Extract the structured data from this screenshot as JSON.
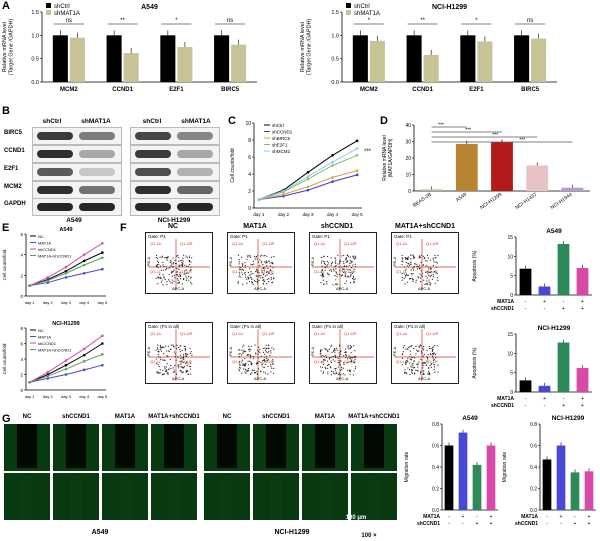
{
  "panel_letters": [
    "A",
    "B",
    "C",
    "D",
    "E",
    "F",
    "G"
  ],
  "western_blot": {
    "lanes_a549": [
      "shCtrl",
      "shMAT1A"
    ],
    "lanes_h1299": [
      "shCtrl",
      "shMAT1A"
    ],
    "rows": [
      "BIRC5",
      "CCND1",
      "E2F1",
      "MCM2",
      "GAPDH"
    ],
    "cell_lines": [
      "A549",
      "NCI-H1299"
    ]
  },
  "flow": {
    "columns": [
      "NC",
      "MAT1A",
      "shCCND1",
      "MAT1A+shCCND1"
    ],
    "gate_texts": [
      "Gate: P1",
      "Gate: P1",
      "Gate: P1",
      "Gate: P1",
      "Gate: (P1 in all)",
      "Gate: (P1 in all)",
      "Gate: (P1 in all)",
      "Gate: (P1 in all)"
    ],
    "axis_x": "APC-A",
    "axis_y": "PE-A",
    "quadrants": [
      "Q1-UL",
      "Q1-UR",
      "Q1-LL",
      "Q1-LR"
    ]
  },
  "wound": {
    "columns": [
      "NC",
      "shCCND1",
      "MAT1A",
      "MAT1A+shCCND1",
      "NC",
      "shCCND1",
      "MAT1A",
      "MAT1A+shCCND1"
    ],
    "cell_lines": [
      "A549",
      "NCI-H1299"
    ],
    "scale_bar": "100 μm",
    "magnification": "100 ×"
  },
  "chart_data": [
    {
      "id": "A-left",
      "type": "bar",
      "title": "A549",
      "ylabel": "Relative mRNA level\n(Target Gene /GAPDH)",
      "ylim": [
        0,
        1.5
      ],
      "yticks": [
        "0.0",
        "0.5",
        "1.0",
        "1.5"
      ],
      "categories": [
        "MCM2",
        "CCND1",
        "E2F1",
        "BIRC5"
      ],
      "legend": [
        "shCtrl",
        "shMAT1A"
      ],
      "series": [
        {
          "name": "shCtrl",
          "color": "#000000",
          "values": [
            1.0,
            1.0,
            1.0,
            1.0
          ]
        },
        {
          "name": "shMAT1A",
          "color": "#c8c397",
          "values": [
            0.95,
            0.62,
            0.75,
            0.8
          ]
        }
      ],
      "sig": [
        "ns",
        "**",
        "*",
        "ns"
      ]
    },
    {
      "id": "A-right",
      "type": "bar",
      "title": "NCI-H1299",
      "ylabel": "Relative mRNA level\n(Target Gene /GAPDH)",
      "ylim": [
        0,
        1.5
      ],
      "yticks": [
        "0.0",
        "0.5",
        "1.0",
        "1.5"
      ],
      "categories": [
        "MCM2",
        "CCND1",
        "E2F1",
        "BIRC5"
      ],
      "legend": [
        "shCtrl",
        "shMAT1A"
      ],
      "series": [
        {
          "name": "shCtrl",
          "color": "#000000",
          "values": [
            1.0,
            1.0,
            1.0,
            1.0
          ]
        },
        {
          "name": "shMAT1A",
          "color": "#c8c397",
          "values": [
            0.88,
            0.58,
            0.87,
            0.93
          ]
        }
      ],
      "sig": [
        "*",
        "**",
        "*",
        "ns"
      ]
    },
    {
      "id": "C",
      "type": "line",
      "title": "",
      "ylabel": "Cell counts/fold",
      "ylim": [
        0,
        10
      ],
      "yticks": [
        "0",
        "2",
        "4",
        "6",
        "8",
        "10"
      ],
      "categories": [
        "day 1",
        "day 2",
        "day 3",
        "day 4",
        "day 5"
      ],
      "legend": [
        "shCtrl",
        "shCCND1",
        "shBIRC5",
        "shE2F1",
        "shMCM2"
      ],
      "series": [
        {
          "name": "shCtrl",
          "color": "#000000",
          "values": [
            1,
            2.1,
            4.2,
            6.2,
            7.9
          ]
        },
        {
          "name": "shCCND1",
          "color": "#3b3bd6",
          "values": [
            1,
            1.4,
            2.1,
            3.1,
            3.9
          ]
        },
        {
          "name": "shBIRC5",
          "color": "#e0a03a",
          "values": [
            1,
            1.6,
            2.5,
            3.6,
            4.4
          ]
        },
        {
          "name": "shE2F1",
          "color": "#7fbf6a",
          "values": [
            1,
            1.9,
            3.4,
            5.0,
            6.2
          ]
        },
        {
          "name": "shMCM2",
          "color": "#8fc8e8",
          "values": [
            1,
            2.0,
            3.7,
            5.4,
            7.0
          ]
        }
      ],
      "sig_label": "***"
    },
    {
      "id": "D",
      "type": "bar",
      "title": "",
      "ylabel": "Relative mRNA level\n(MAT1A/GAPDH)",
      "ylim": [
        0,
        40
      ],
      "yticks": [
        "0",
        "10",
        "20",
        "30",
        "40"
      ],
      "categories": [
        "BEAS-2B",
        "A549",
        "NCI-H1299",
        "NCI-H1437",
        "NCI-H1944"
      ],
      "series": [
        {
          "name": "",
          "colors": [
            "#bfb9a0",
            "#b88431",
            "#b31b1b",
            "#e7c3c6",
            "#b89ac8"
          ],
          "values": [
            1,
            28.5,
            29.5,
            15.5,
            2.0
          ]
        }
      ],
      "sig": [
        "***",
        "***",
        "***",
        "***"
      ]
    },
    {
      "id": "E-top",
      "type": "line",
      "title": "A549",
      "ylabel": "Cell counts/fold",
      "ylim": [
        0,
        6
      ],
      "yticks": [
        "0",
        "2",
        "4",
        "6"
      ],
      "categories": [
        "day 1",
        "day 2",
        "day 3",
        "day 4",
        "day 5"
      ],
      "legend": [
        "NC",
        "MAT1A",
        "shCCND1",
        "MAT1A+shCCND1"
      ],
      "series": [
        {
          "name": "NC",
          "color": "#000000",
          "values": [
            1,
            1.6,
            2.4,
            3.4,
            4.2
          ]
        },
        {
          "name": "MAT1A",
          "color": "#4747d8",
          "values": [
            1,
            1.3,
            1.8,
            2.2,
            2.6
          ]
        },
        {
          "name": "shCCND1",
          "color": "#d94aa8",
          "values": [
            1,
            1.8,
            2.8,
            4.0,
            5.1
          ]
        },
        {
          "name": "MAT1A+shCCND1",
          "color": "#57a55a",
          "values": [
            1,
            1.5,
            2.2,
            3.0,
            3.7
          ]
        }
      ]
    },
    {
      "id": "E-bottom",
      "type": "line",
      "title": "NCI-H1299",
      "ylabel": "Cell counts/fold",
      "ylim": [
        0,
        8
      ],
      "yticks": [
        "0",
        "2",
        "4",
        "6",
        "8"
      ],
      "categories": [
        "day 1",
        "day 2",
        "day 3",
        "day 4",
        "day 5"
      ],
      "legend": [
        "NC",
        "MAT1A",
        "shCCND1",
        "MAT1A+shCCND1"
      ],
      "series": [
        {
          "name": "NC",
          "color": "#000000",
          "values": [
            1,
            2.0,
            3.2,
            4.5,
            6.0
          ]
        },
        {
          "name": "MAT1A",
          "color": "#4747d8",
          "values": [
            1,
            1.5,
            2.0,
            2.6,
            3.2
          ]
        },
        {
          "name": "shCCND1",
          "color": "#d94aa8",
          "values": [
            1,
            2.3,
            3.8,
            5.3,
            7.0
          ]
        },
        {
          "name": "MAT1A+shCCND1",
          "color": "#57a55a",
          "values": [
            1,
            1.8,
            2.7,
            3.7,
            4.6
          ]
        }
      ]
    },
    {
      "id": "F-top",
      "type": "bar",
      "title": "A549",
      "ylabel": "Apoptosis (%)",
      "ylim": [
        0,
        15
      ],
      "yticks": [
        "0",
        "5",
        "10",
        "15"
      ],
      "categories": [
        "NC",
        "MAT1A",
        "shCCND1",
        "MAT1A+shCCND1"
      ],
      "row_labels": [
        "MAT1A",
        "shCCND1"
      ],
      "row_marks": [
        [
          "-",
          "+",
          "-",
          "+"
        ],
        [
          "-",
          "-",
          "+",
          "+"
        ]
      ],
      "series": [
        {
          "name": "",
          "colors": [
            "#000000",
            "#4747d8",
            "#2f8a5a",
            "#d94aa8"
          ],
          "values": [
            6.8,
            2.2,
            13.2,
            7.0
          ]
        }
      ]
    },
    {
      "id": "F-bottom",
      "type": "bar",
      "title": "NCI-H1299",
      "ylabel": "Apoptosis (%)",
      "ylim": [
        0,
        15
      ],
      "yticks": [
        "0",
        "5",
        "10",
        "15"
      ],
      "categories": [
        "NC",
        "MAT1A",
        "shCCND1",
        "MAT1A+shCCND1"
      ],
      "row_labels": [
        "MAT1A",
        "shCCND1"
      ],
      "row_marks": [
        [
          "-",
          "+",
          "-",
          "+"
        ],
        [
          "-",
          "-",
          "+",
          "+"
        ]
      ],
      "series": [
        {
          "name": "",
          "colors": [
            "#000000",
            "#4747d8",
            "#2f8a5a",
            "#d94aa8"
          ],
          "values": [
            3.0,
            1.6,
            12.8,
            6.2
          ]
        }
      ]
    },
    {
      "id": "G-left",
      "type": "bar",
      "title": "A549",
      "ylabel": "Migration rate",
      "ylim": [
        0,
        0.8
      ],
      "yticks": [
        "0.0",
        "0.2",
        "0.4",
        "0.6",
        "0.8"
      ],
      "categories": [
        "NC",
        "MAT1A",
        "shCCND1",
        "MAT1A+shCCND1"
      ],
      "row_labels": [
        "MAT1A",
        "shCCND1"
      ],
      "row_marks": [
        [
          "-",
          "+",
          "-",
          "+"
        ],
        [
          "-",
          "-",
          "+",
          "+"
        ]
      ],
      "series": [
        {
          "name": "",
          "colors": [
            "#000000",
            "#4747d8",
            "#2f8a5a",
            "#d94aa8"
          ],
          "values": [
            0.6,
            0.72,
            0.42,
            0.6
          ]
        }
      ]
    },
    {
      "id": "G-right",
      "type": "bar",
      "title": "NCI-H1299",
      "ylabel": "Migration rate",
      "ylim": [
        0,
        0.8
      ],
      "yticks": [
        "0.0",
        "0.2",
        "0.4",
        "0.6",
        "0.8"
      ],
      "categories": [
        "NC",
        "MAT1A",
        "shCCND1",
        "MAT1A+shCCND1"
      ],
      "row_labels": [
        "MAT1A",
        "shCCND1"
      ],
      "row_marks": [
        [
          "-",
          "+",
          "-",
          "+"
        ],
        [
          "-",
          "-",
          "+",
          "+"
        ]
      ],
      "series": [
        {
          "name": "",
          "colors": [
            "#000000",
            "#4747d8",
            "#2f8a5a",
            "#d94aa8"
          ],
          "values": [
            0.47,
            0.6,
            0.35,
            0.36
          ]
        }
      ]
    }
  ]
}
